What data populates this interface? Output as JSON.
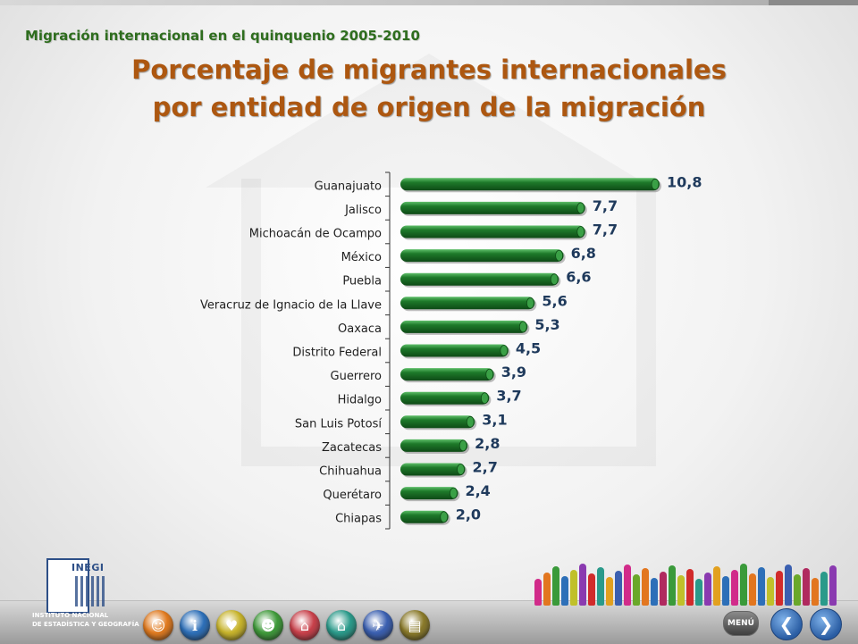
{
  "header": {
    "subtitle": "Migración internacional en el quinquenio 2005-2010",
    "title_line1": "Porcentaje de migrantes internacionales",
    "title_line2": "por entidad de origen de la migración"
  },
  "chart_data": {
    "type": "bar",
    "orientation": "horizontal",
    "categories": [
      "Guanajuato",
      "Jalisco",
      "Michoacán de Ocampo",
      "México",
      "Puebla",
      "Veracruz de Ignacio de la Llave",
      "Oaxaca",
      "Distrito Federal",
      "Guerrero",
      "Hidalgo",
      "San Luis Potosí",
      "Zacatecas",
      "Chihuahua",
      "Querétaro",
      "Chiapas"
    ],
    "values": [
      10.8,
      7.7,
      7.7,
      6.8,
      6.6,
      5.6,
      5.3,
      4.5,
      3.9,
      3.7,
      3.1,
      2.8,
      2.7,
      2.4,
      2.0
    ],
    "value_labels": [
      "10,8",
      "7,7",
      "7,7",
      "6,8",
      "6,6",
      "5,6",
      "5,3",
      "4,5",
      "3,9",
      "3,7",
      "3,1",
      "2,8",
      "2,7",
      "2,4",
      "2,0"
    ],
    "bar_color": "#1e7a2a",
    "xlim": [
      0,
      10.8
    ],
    "grid": false,
    "legend": "none"
  },
  "footer": {
    "logo_text": "INEGI",
    "institution_line1": "INSTITUTO NACIONAL",
    "institution_line2": "DE ESTADÍSTICA Y GEOGRAFÍA",
    "menu_label": "MENÚ",
    "nav_icons": [
      {
        "name": "population-icon",
        "color": "#e07a1f"
      },
      {
        "name": "info-icon",
        "color": "#2d6fb8"
      },
      {
        "name": "family-icon",
        "color": "#c7b32a"
      },
      {
        "name": "people-icon",
        "color": "#3f9a3a"
      },
      {
        "name": "house-icon",
        "color": "#c8404a"
      },
      {
        "name": "home-services-icon",
        "color": "#2a9a8a"
      },
      {
        "name": "migration-icon",
        "color": "#3a5fb0"
      },
      {
        "name": "document-icon",
        "color": "#8a7a2a"
      }
    ],
    "people_colors": [
      "#d12b8a",
      "#e2761f",
      "#3a9a3a",
      "#2d6fb8",
      "#c0c02a",
      "#8a3ab0",
      "#d12b2b",
      "#2a9a8a",
      "#e2a01f",
      "#3a5fb0",
      "#d12b8a",
      "#6aa82a",
      "#e2761f",
      "#2d6fb8",
      "#b02a5f",
      "#3a9a3a",
      "#c0c02a",
      "#d12b2b",
      "#2a9a8a",
      "#8a3ab0",
      "#e2a01f",
      "#2d6fb8",
      "#d12b8a",
      "#3a9a3a",
      "#e2761f",
      "#2d6fb8",
      "#c0c02a",
      "#d12b2b",
      "#3a5fb0",
      "#6aa82a",
      "#b02a5f",
      "#e2761f",
      "#2a9a8a",
      "#8a3ab0"
    ]
  }
}
